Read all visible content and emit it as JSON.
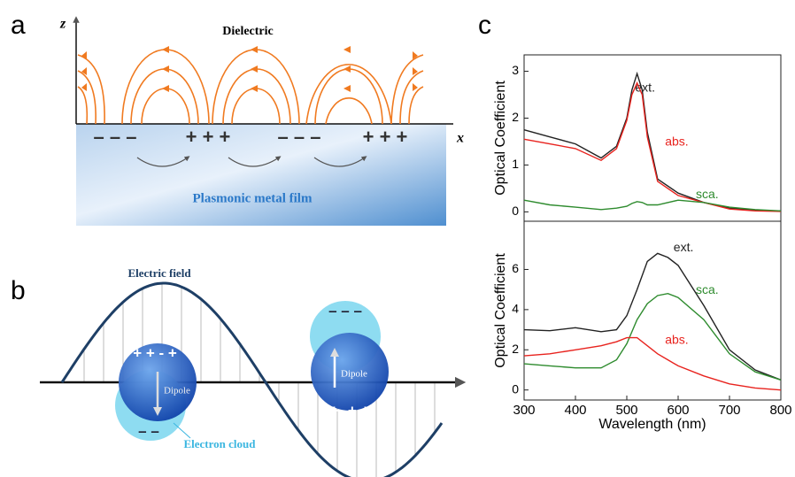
{
  "panel_labels": [
    "a",
    "b",
    "c"
  ],
  "diagram_a": {
    "z_label": "z",
    "x_label": "x",
    "top_label": "Dielectric",
    "film_label": "Plasmonic metal film",
    "charges": [
      "– – –",
      "+ + +",
      "– – –",
      "+ + +"
    ]
  },
  "diagram_b": {
    "wave_label": "Electric field",
    "dipole_labels": [
      "Dipole",
      "Dipole"
    ],
    "cloud_label": "Electron cloud",
    "charges": [
      "+ + - +",
      "– –",
      "– – –",
      "+- + +"
    ]
  },
  "chart_data": [
    {
      "type": "line",
      "ylabel": "Optical Coefficient",
      "x": [
        300,
        350,
        400,
        450,
        480,
        500,
        510,
        520,
        530,
        540,
        560,
        600,
        650,
        700,
        750,
        800
      ],
      "xlim": [
        300,
        800
      ],
      "ylim": [
        -0.2,
        3.35
      ],
      "yticks": [
        0,
        1,
        2,
        3
      ],
      "series": [
        {
          "name": "ext.",
          "color": "#222222",
          "values": [
            1.75,
            1.6,
            1.45,
            1.15,
            1.4,
            2.0,
            2.6,
            2.95,
            2.6,
            1.7,
            0.7,
            0.4,
            0.2,
            0.08,
            0.03,
            0.02
          ]
        },
        {
          "name": "abs.",
          "color": "#e8231e",
          "values": [
            1.55,
            1.45,
            1.35,
            1.1,
            1.35,
            1.95,
            2.5,
            2.75,
            2.5,
            1.6,
            0.65,
            0.35,
            0.2,
            0.06,
            0.02,
            0.01
          ]
        },
        {
          "name": "sca.",
          "color": "#2e8b2e",
          "values": [
            0.25,
            0.15,
            0.1,
            0.05,
            0.08,
            0.12,
            0.18,
            0.22,
            0.2,
            0.15,
            0.15,
            0.25,
            0.2,
            0.1,
            0.05,
            0.02
          ]
        }
      ]
    },
    {
      "type": "line",
      "ylabel": "Optical Coefficient",
      "xlabel": "Wavelength (nm)",
      "x": [
        300,
        350,
        400,
        450,
        480,
        500,
        520,
        540,
        560,
        580,
        600,
        650,
        700,
        750,
        800
      ],
      "xlim": [
        300,
        800
      ],
      "xticks": [
        300,
        400,
        500,
        600,
        700,
        800
      ],
      "ylim": [
        -0.5,
        8.4
      ],
      "yticks": [
        0,
        2,
        4,
        6
      ],
      "series": [
        {
          "name": "ext.",
          "color": "#222222",
          "values": [
            3.0,
            2.95,
            3.1,
            2.9,
            3.0,
            3.7,
            5.0,
            6.4,
            6.8,
            6.6,
            6.2,
            4.2,
            2.0,
            1.0,
            0.5
          ]
        },
        {
          "name": "sca.",
          "color": "#2e8b2e",
          "values": [
            1.3,
            1.2,
            1.1,
            1.1,
            1.5,
            2.3,
            3.5,
            4.3,
            4.7,
            4.8,
            4.6,
            3.5,
            1.8,
            0.9,
            0.5
          ]
        },
        {
          "name": "abs.",
          "color": "#e8231e",
          "values": [
            1.7,
            1.8,
            2.0,
            2.2,
            2.4,
            2.6,
            2.6,
            2.2,
            1.8,
            1.5,
            1.2,
            0.7,
            0.3,
            0.1,
            0.0
          ]
        }
      ]
    }
  ]
}
